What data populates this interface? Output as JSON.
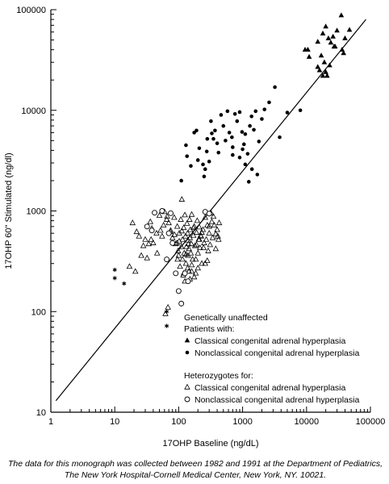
{
  "chart_data": {
    "type": "scatter",
    "xlabel": "17OHP Baseline (ng/dL)",
    "ylabel": "17OHP 60\" Stimulated (ng/dl)",
    "xscale": "log",
    "yscale": "log",
    "xlim": [
      1,
      100000
    ],
    "ylim": [
      10,
      100000
    ],
    "x_ticks": [
      1,
      10,
      100,
      1000,
      10000,
      100000
    ],
    "x_tick_labels": [
      "1",
      "10",
      "100",
      "1000",
      "10000",
      "100000"
    ],
    "y_ticks": [
      10,
      100,
      1000,
      10000,
      100000
    ],
    "y_tick_labels": [
      "10",
      "100",
      "1000",
      "10000",
      "100000"
    ],
    "legend_position": "bottom-right",
    "legend": {
      "group1_title": "Genetically unaffected",
      "group2_title": "Patients with:",
      "group3_title": "Heterozygotes for:",
      "classical_patient": "Classical congenital adrenal hyperplasia",
      "nonclassical_patient": "Nonclassical congenital adrenal hyperplasia",
      "classical_het": "Classical congenital adrenal hyperplasia",
      "nonclassical_het": "Nonclassical congenital adrenal hyperplasia"
    },
    "regression_line": {
      "x": [
        1.2,
        85000
      ],
      "y": [
        13,
        80000
      ]
    },
    "series": [
      {
        "name": "Genetically unaffected",
        "marker": "asterisk",
        "points": [
          [
            10,
            260
          ],
          [
            10,
            215
          ],
          [
            14,
            190
          ],
          [
            65,
            100
          ],
          [
            65,
            72
          ]
        ]
      },
      {
        "name": "Classical congenital adrenal hyperplasia",
        "marker": "filled-triangle",
        "points": [
          [
            9500,
            40000
          ],
          [
            10500,
            40000
          ],
          [
            11000,
            34000
          ],
          [
            15000,
            48000
          ],
          [
            18000,
            58000
          ],
          [
            20000,
            68000
          ],
          [
            22000,
            52000
          ],
          [
            24000,
            47000
          ],
          [
            26000,
            54000
          ],
          [
            30000,
            62000
          ],
          [
            35000,
            88000
          ],
          [
            40000,
            52000
          ],
          [
            47000,
            63000
          ],
          [
            17000,
            35000
          ],
          [
            19000,
            30000
          ],
          [
            16000,
            25000
          ],
          [
            18000,
            22000
          ],
          [
            20000,
            24000
          ],
          [
            23000,
            28000
          ],
          [
            27000,
            43000
          ],
          [
            36000,
            40000
          ],
          [
            38000,
            37000
          ],
          [
            15000,
            27000
          ],
          [
            21000,
            22000
          ],
          [
            28000,
            43000
          ]
        ]
      },
      {
        "name": "Nonclassical congenital adrenal hyperplasia",
        "marker": "filled-circle",
        "points": [
          [
            130,
            4500
          ],
          [
            135,
            3500
          ],
          [
            155,
            2800
          ],
          [
            175,
            6000
          ],
          [
            190,
            6300
          ],
          [
            200,
            3200
          ],
          [
            210,
            4200
          ],
          [
            240,
            2900
          ],
          [
            250,
            2200
          ],
          [
            260,
            2600
          ],
          [
            275,
            3900
          ],
          [
            300,
            3100
          ],
          [
            320,
            7800
          ],
          [
            330,
            5900
          ],
          [
            350,
            5200
          ],
          [
            370,
            6300
          ],
          [
            400,
            4700
          ],
          [
            420,
            3800
          ],
          [
            460,
            9000
          ],
          [
            500,
            7000
          ],
          [
            540,
            5000
          ],
          [
            580,
            9800
          ],
          [
            620,
            6000
          ],
          [
            680,
            5400
          ],
          [
            700,
            3600
          ],
          [
            760,
            9200
          ],
          [
            820,
            7800
          ],
          [
            900,
            9600
          ],
          [
            980,
            6100
          ],
          [
            1050,
            4600
          ],
          [
            1100,
            2900
          ],
          [
            1200,
            3700
          ],
          [
            1300,
            7000
          ],
          [
            1380,
            8700
          ],
          [
            1500,
            6400
          ],
          [
            1600,
            9800
          ],
          [
            1700,
            2300
          ],
          [
            1800,
            4900
          ],
          [
            2000,
            8200
          ],
          [
            2200,
            10200
          ],
          [
            2600,
            12000
          ],
          [
            3200,
            17000
          ],
          [
            5000,
            9500
          ],
          [
            8000,
            10000
          ],
          [
            3800,
            5400
          ],
          [
            700,
            4300
          ],
          [
            900,
            3400
          ],
          [
            1100,
            5800
          ],
          [
            1400,
            2600
          ],
          [
            1250,
            1950
          ],
          [
            110,
            2000
          ],
          [
            1000,
            4100
          ],
          [
            280,
            5200
          ]
        ]
      },
      {
        "name": "Heterozygotes for: Classical congenital adrenal hyperplasia",
        "marker": "open-triangle",
        "points": [
          [
            17,
            280
          ],
          [
            19,
            760
          ],
          [
            21,
            250
          ],
          [
            22,
            620
          ],
          [
            24,
            560
          ],
          [
            26,
            360
          ],
          [
            28,
            450
          ],
          [
            30,
            520
          ],
          [
            32,
            340
          ],
          [
            34,
            470
          ],
          [
            36,
            780
          ],
          [
            38,
            670
          ],
          [
            40,
            480
          ],
          [
            45,
            600
          ],
          [
            50,
            900
          ],
          [
            55,
            560
          ],
          [
            60,
            980
          ],
          [
            65,
            820
          ],
          [
            70,
            760
          ],
          [
            75,
            640
          ],
          [
            80,
            540
          ],
          [
            85,
            860
          ],
          [
            90,
            470
          ],
          [
            95,
            700
          ],
          [
            100,
            360
          ],
          [
            102,
            600
          ],
          [
            105,
            280
          ],
          [
            108,
            820
          ],
          [
            110,
            440
          ],
          [
            112,
            1300
          ],
          [
            115,
            520
          ],
          [
            118,
            230
          ],
          [
            120,
            680
          ],
          [
            122,
            380
          ],
          [
            125,
            910
          ],
          [
            128,
            560
          ],
          [
            130,
            300
          ],
          [
            132,
            440
          ],
          [
            135,
            750
          ],
          [
            138,
            600
          ],
          [
            140,
            360
          ],
          [
            142,
            470
          ],
          [
            145,
            250
          ],
          [
            148,
            820
          ],
          [
            150,
            540
          ],
          [
            152,
            650
          ],
          [
            155,
            380
          ],
          [
            158,
            470
          ],
          [
            160,
            920
          ],
          [
            165,
            330
          ],
          [
            170,
            570
          ],
          [
            175,
            700
          ],
          [
            180,
            450
          ],
          [
            185,
            240
          ],
          [
            190,
            610
          ],
          [
            195,
            800
          ],
          [
            200,
            380
          ],
          [
            205,
            520
          ],
          [
            210,
            690
          ],
          [
            215,
            430
          ],
          [
            220,
            570
          ],
          [
            230,
            300
          ],
          [
            240,
            650
          ],
          [
            250,
            480
          ],
          [
            260,
            860
          ],
          [
            270,
            520
          ],
          [
            280,
            720
          ],
          [
            290,
            400
          ],
          [
            300,
            600
          ],
          [
            310,
            460
          ],
          [
            320,
            950
          ],
          [
            340,
            540
          ],
          [
            360,
            720
          ],
          [
            380,
            590
          ],
          [
            400,
            650
          ],
          [
            420,
            520
          ],
          [
            430,
            760
          ],
          [
            120,
            240
          ],
          [
            125,
            200
          ],
          [
            138,
            270
          ],
          [
            150,
            210
          ],
          [
            160,
            250
          ],
          [
            175,
            220
          ],
          [
            62,
            95
          ],
          [
            68,
            110
          ],
          [
            115,
            330
          ],
          [
            130,
            370
          ],
          [
            145,
            420
          ],
          [
            160,
            290
          ],
          [
            185,
            330
          ],
          [
            200,
            270
          ],
          [
            225,
            560
          ],
          [
            245,
            430
          ],
          [
            300,
            700
          ],
          [
            350,
            880
          ],
          [
            380,
            420
          ],
          [
            230,
            610
          ],
          [
            102,
            500
          ],
          [
            112,
            630
          ],
          [
            140,
            510
          ],
          [
            170,
            680
          ],
          [
            190,
            460
          ],
          [
            210,
            520
          ],
          [
            260,
            300
          ],
          [
            280,
            320
          ],
          [
            330,
            780
          ],
          [
            410,
            560
          ],
          [
            37,
            520
          ],
          [
            46,
            380
          ],
          [
            52,
            640
          ],
          [
            58,
            720
          ],
          [
            66,
            880
          ],
          [
            74,
            620
          ],
          [
            86,
            580
          ],
          [
            94,
            480
          ],
          [
            96,
            330
          ],
          [
            98,
            400
          ]
        ]
      },
      {
        "name": "Heterozygotes for: Nonclassical congenital adrenal hyperplasia",
        "marker": "open-circle",
        "points": [
          [
            32,
            700
          ],
          [
            38,
            640
          ],
          [
            42,
            960
          ],
          [
            55,
            1000
          ],
          [
            65,
            330
          ],
          [
            75,
            950
          ],
          [
            90,
            240
          ],
          [
            100,
            160
          ],
          [
            110,
            120
          ],
          [
            125,
            240
          ],
          [
            140,
            200
          ],
          [
            260,
            980
          ],
          [
            300,
            940
          ],
          [
            80,
            480
          ],
          [
            70,
            600
          ]
        ]
      }
    ]
  },
  "caption": "The data for this monograph was collected between 1982 and 1991 at the Department of Pediatrics, The New York Hospital-Cornell Medical Center, New York, NY. 10021."
}
